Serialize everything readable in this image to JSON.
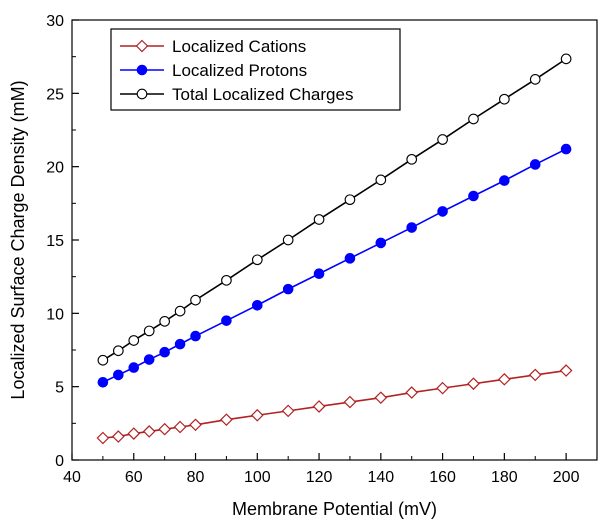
{
  "chart_data": {
    "type": "line",
    "title": "",
    "xlabel": "Membrane Potential (mV)",
    "ylabel": "Localized Surface Charge Density (mM)",
    "xlim": [
      40,
      210
    ],
    "ylim": [
      0,
      30
    ],
    "xticks": [
      40,
      60,
      80,
      100,
      120,
      140,
      160,
      180,
      200
    ],
    "yticks": [
      0,
      5,
      10,
      15,
      20,
      25,
      30
    ],
    "grid": false,
    "legend_position": "top-left",
    "x": [
      50,
      55,
      60,
      65,
      70,
      75,
      80,
      90,
      100,
      110,
      120,
      130,
      140,
      150,
      160,
      170,
      180,
      190,
      200
    ],
    "series": [
      {
        "name": "Localized Cations",
        "color": "#b22222",
        "marker": "open-diamond",
        "values": [
          1.5,
          1.6,
          1.8,
          1.95,
          2.1,
          2.25,
          2.4,
          2.75,
          3.05,
          3.35,
          3.65,
          3.95,
          4.25,
          4.6,
          4.9,
          5.2,
          5.5,
          5.8,
          6.1
        ]
      },
      {
        "name": "Localized Protons",
        "color": "#0000ff",
        "marker": "filled-circle",
        "values": [
          5.3,
          5.8,
          6.3,
          6.85,
          7.35,
          7.9,
          8.45,
          9.5,
          10.55,
          11.65,
          12.7,
          13.75,
          14.8,
          15.85,
          16.95,
          18.0,
          19.05,
          20.15,
          21.2
        ]
      },
      {
        "name": "Total Localized Charges",
        "color": "#000000",
        "marker": "open-circle",
        "values": [
          6.8,
          7.45,
          8.15,
          8.8,
          9.45,
          10.15,
          10.9,
          12.25,
          13.65,
          15.0,
          16.4,
          17.75,
          19.1,
          20.5,
          21.85,
          23.25,
          24.6,
          25.95,
          27.35
        ]
      }
    ]
  }
}
